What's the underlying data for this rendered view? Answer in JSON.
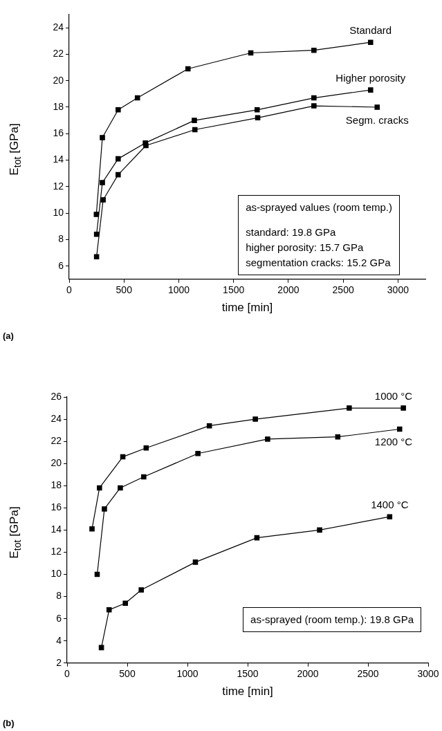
{
  "chart_data": [
    {
      "type": "line",
      "xlabel": "time [min]",
      "ylabel": "E$_{tot}$ [GPa]",
      "xlim": [
        0,
        3250
      ],
      "xticks": [
        0,
        500,
        1000,
        1500,
        2000,
        2500,
        3000
      ],
      "ylim": [
        5,
        25
      ],
      "yticks": [
        6,
        8,
        10,
        12,
        14,
        16,
        18,
        20,
        22,
        24
      ],
      "grid": false,
      "legend": false,
      "marker": "square",
      "line_style": "solid",
      "annotations": [
        "as-sprayed values (room temp.)",
        "standard: 19.8 GPa",
        "higher porosity: 15.7 GPa",
        "segmentation cracks: 15.2 GPa",
        "(a)"
      ],
      "series": [
        {
          "name": "Standard",
          "color": "#000000",
          "x": [
            248,
            303,
            447,
            623,
            1084,
            1657,
            2233,
            2750
          ],
          "values": [
            9.9,
            15.7,
            17.8,
            18.7,
            20.9,
            22.1,
            22.3,
            22.9
          ]
        },
        {
          "name": "Higher porosity",
          "color": "#000000",
          "x": [
            250,
            303,
            447,
            695,
            1142,
            1715,
            2233,
            2750
          ],
          "values": [
            8.4,
            12.3,
            14.1,
            15.3,
            17.0,
            17.8,
            18.7,
            19.3
          ]
        },
        {
          "name": "Segm. cracks",
          "color": "#000000",
          "x": [
            250,
            310,
            447,
            700,
            1147,
            1720,
            2233,
            2810
          ],
          "values": [
            6.7,
            11.0,
            12.9,
            15.1,
            16.3,
            17.2,
            18.1,
            18.0
          ]
        }
      ]
    },
    {
      "type": "line",
      "xlabel": "time [min]",
      "ylabel": "E$_{tot}$ [GPa]",
      "xlim": [
        0,
        3000
      ],
      "xticks": [
        0,
        500,
        1000,
        1500,
        2000,
        2500,
        3000
      ],
      "ylim": [
        2,
        26
      ],
      "yticks": [
        2,
        4,
        6,
        8,
        10,
        12,
        14,
        16,
        18,
        20,
        22,
        24,
        26
      ],
      "grid": false,
      "legend": false,
      "marker": "square",
      "line_style": "solid",
      "annotations": [
        "as-sprayed (room temp.): 19.8 GPa",
        "(b)"
      ],
      "series": [
        {
          "name": "1000 °C",
          "color": "#000000",
          "x": [
            207,
            269,
            463,
            657,
            1182,
            1564,
            2344,
            2794
          ],
          "values": [
            14.1,
            17.8,
            20.6,
            21.4,
            23.4,
            24.0,
            25.0,
            25.0
          ]
        },
        {
          "name": "1200 °C",
          "color": "#000000",
          "x": [
            250,
            310,
            442,
            637,
            1087,
            1666,
            2249,
            2763
          ],
          "values": [
            10.0,
            15.9,
            17.8,
            18.8,
            20.9,
            22.2,
            22.4,
            23.1
          ]
        },
        {
          "name": "1400 °C",
          "color": "#000000",
          "x": [
            285,
            349,
            484,
            616,
            1066,
            1577,
            2098,
            2680
          ],
          "values": [
            3.4,
            6.8,
            7.4,
            8.6,
            11.1,
            13.3,
            14.0,
            15.2
          ]
        }
      ]
    }
  ]
}
